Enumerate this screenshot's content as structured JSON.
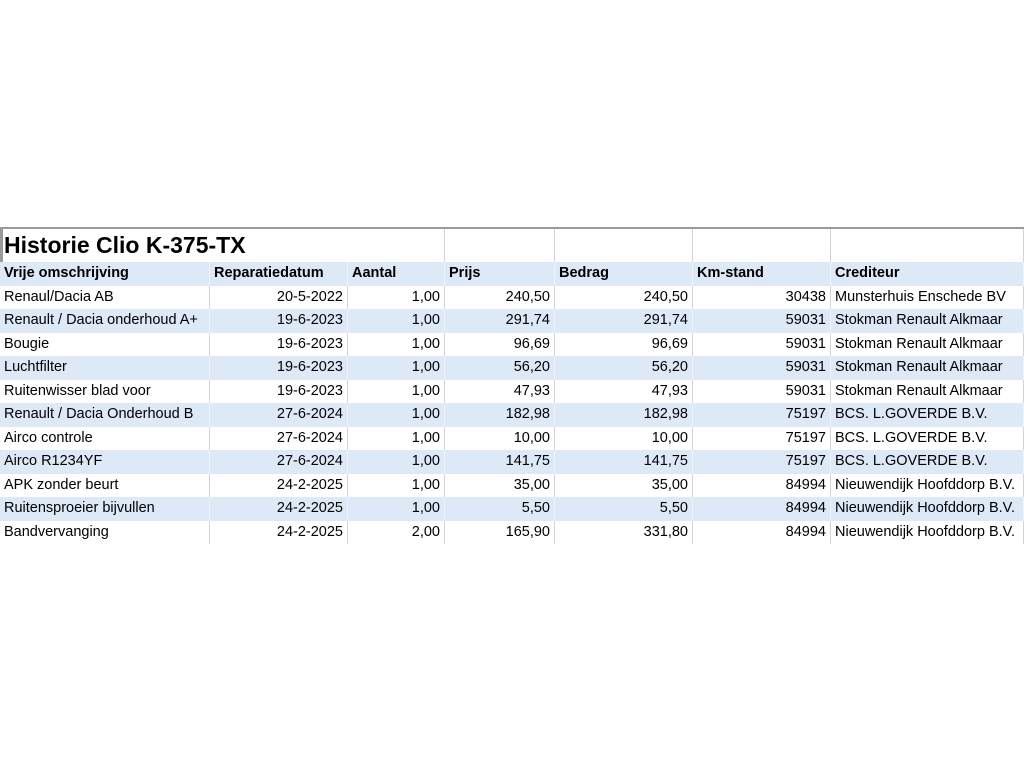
{
  "sheet": {
    "title": "Historie Clio K-375-TX",
    "colors": {
      "band": "#dde9f7",
      "plain": "#ffffff",
      "gridline": "#d4d4d4"
    },
    "headers": [
      "Vrije omschrijving",
      "Reparatiedatum",
      "Aantal",
      "Prijs",
      "Bedrag",
      "Km-stand",
      "Crediteur"
    ],
    "rows": [
      [
        "Renaul/Dacia AB",
        "20-5-2022",
        "1,00",
        "240,50",
        "240,50",
        "30438",
        "Munsterhuis Enschede BV"
      ],
      [
        "Renault / Dacia onderhoud A+",
        "19-6-2023",
        "1,00",
        "291,74",
        "291,74",
        "59031",
        "Stokman Renault Alkmaar"
      ],
      [
        "Bougie",
        "19-6-2023",
        "1,00",
        "96,69",
        "96,69",
        "59031",
        "Stokman Renault Alkmaar"
      ],
      [
        "Luchtfilter",
        "19-6-2023",
        "1,00",
        "56,20",
        "56,20",
        "59031",
        "Stokman Renault Alkmaar"
      ],
      [
        "Ruitenwisser blad voor",
        "19-6-2023",
        "1,00",
        "47,93",
        "47,93",
        "59031",
        "Stokman Renault Alkmaar"
      ],
      [
        "Renault / Dacia Onderhoud B",
        "27-6-2024",
        "1,00",
        "182,98",
        "182,98",
        "75197",
        "BCS. L.GOVERDE B.V."
      ],
      [
        "Airco controle",
        "27-6-2024",
        "1,00",
        "10,00",
        "10,00",
        "75197",
        "BCS. L.GOVERDE B.V."
      ],
      [
        "Airco R1234YF",
        "27-6-2024",
        "1,00",
        "141,75",
        "141,75",
        "75197",
        "BCS. L.GOVERDE B.V."
      ],
      [
        "APK zonder beurt",
        "24-2-2025",
        "1,00",
        "35,00",
        "35,00",
        "84994",
        "Nieuwendijk Hoofddorp B.V."
      ],
      [
        "Ruitensproeier bijvullen",
        "24-2-2025",
        "1,00",
        "5,50",
        "5,50",
        "84994",
        "Nieuwendijk Hoofddorp B.V."
      ],
      [
        "Bandvervanging",
        "24-2-2025",
        "2,00",
        "165,90",
        "331,80",
        "84994",
        "Nieuwendijk Hoofddorp B.V."
      ]
    ]
  }
}
